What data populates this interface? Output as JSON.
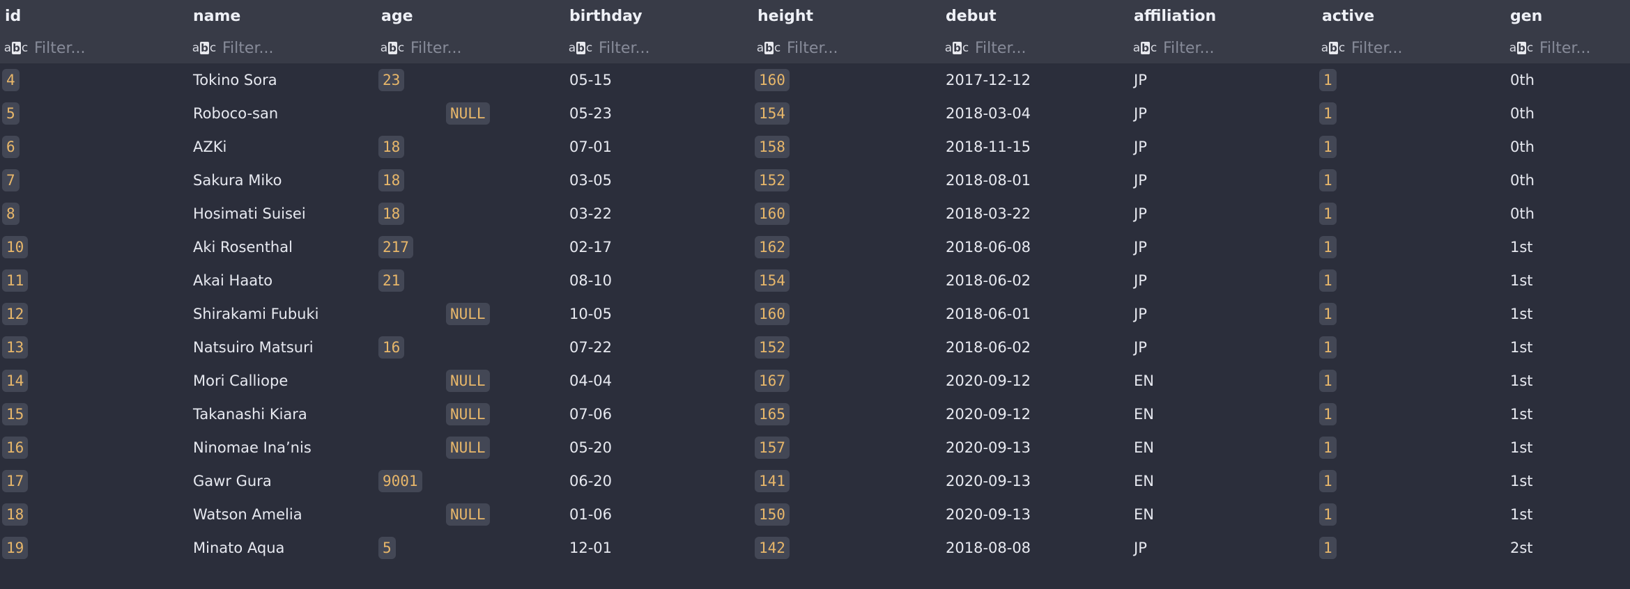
{
  "columns": [
    {
      "key": "id",
      "label": "id"
    },
    {
      "key": "name",
      "label": "name"
    },
    {
      "key": "age",
      "label": "age"
    },
    {
      "key": "birthday",
      "label": "birthday"
    },
    {
      "key": "height",
      "label": "height"
    },
    {
      "key": "debut",
      "label": "debut"
    },
    {
      "key": "affiliation",
      "label": "affiliation"
    },
    {
      "key": "active",
      "label": "active"
    },
    {
      "key": "gen",
      "label": "gen"
    }
  ],
  "filter_placeholder": "Filter...",
  "null_label": "NULL",
  "rows": [
    {
      "id": "4",
      "name": "Tokino Sora",
      "age": "23",
      "birthday": "05-15",
      "height": "160",
      "debut": "2017-12-12",
      "affiliation": "JP",
      "active": "1",
      "gen": "0th"
    },
    {
      "id": "5",
      "name": "Roboco-san",
      "age": null,
      "birthday": "05-23",
      "height": "154",
      "debut": "2018-03-04",
      "affiliation": "JP",
      "active": "1",
      "gen": "0th"
    },
    {
      "id": "6",
      "name": "AZKi",
      "age": "18",
      "birthday": "07-01",
      "height": "158",
      "debut": "2018-11-15",
      "affiliation": "JP",
      "active": "1",
      "gen": "0th"
    },
    {
      "id": "7",
      "name": "Sakura Miko",
      "age": "18",
      "birthday": "03-05",
      "height": "152",
      "debut": "2018-08-01",
      "affiliation": "JP",
      "active": "1",
      "gen": "0th"
    },
    {
      "id": "8",
      "name": "Hosimati Suisei",
      "age": "18",
      "birthday": "03-22",
      "height": "160",
      "debut": "2018-03-22",
      "affiliation": "JP",
      "active": "1",
      "gen": "0th"
    },
    {
      "id": "10",
      "name": "Aki Rosenthal",
      "age": "217",
      "birthday": "02-17",
      "height": "162",
      "debut": "2018-06-08",
      "affiliation": "JP",
      "active": "1",
      "gen": "1st"
    },
    {
      "id": "11",
      "name": "Akai Haato",
      "age": "21",
      "birthday": "08-10",
      "height": "154",
      "debut": "2018-06-02",
      "affiliation": "JP",
      "active": "1",
      "gen": "1st"
    },
    {
      "id": "12",
      "name": "Shirakami Fubuki",
      "age": null,
      "birthday": "10-05",
      "height": "160",
      "debut": "2018-06-01",
      "affiliation": "JP",
      "active": "1",
      "gen": "1st"
    },
    {
      "id": "13",
      "name": "Natsuiro Matsuri",
      "age": "16",
      "birthday": "07-22",
      "height": "152",
      "debut": "2018-06-02",
      "affiliation": "JP",
      "active": "1",
      "gen": "1st"
    },
    {
      "id": "14",
      "name": "Mori Calliope",
      "age": null,
      "birthday": "04-04",
      "height": "167",
      "debut": "2020-09-12",
      "affiliation": "EN",
      "active": "1",
      "gen": "1st"
    },
    {
      "id": "15",
      "name": "Takanashi Kiara",
      "age": null,
      "birthday": "07-06",
      "height": "165",
      "debut": "2020-09-12",
      "affiliation": "EN",
      "active": "1",
      "gen": "1st"
    },
    {
      "id": "16",
      "name": "Ninomae Ina’nis",
      "age": null,
      "birthday": "05-20",
      "height": "157",
      "debut": "2020-09-13",
      "affiliation": "EN",
      "active": "1",
      "gen": "1st"
    },
    {
      "id": "17",
      "name": "Gawr Gura",
      "age": "9001",
      "birthday": "06-20",
      "height": "141",
      "debut": "2020-09-13",
      "affiliation": "EN",
      "active": "1",
      "gen": "1st"
    },
    {
      "id": "18",
      "name": "Watson Amelia",
      "age": null,
      "birthday": "01-06",
      "height": "150",
      "debut": "2020-09-13",
      "affiliation": "EN",
      "active": "1",
      "gen": "1st"
    },
    {
      "id": "19",
      "name": "Minato Aqua",
      "age": "5",
      "birthday": "12-01",
      "height": "142",
      "debut": "2018-08-08",
      "affiliation": "JP",
      "active": "1",
      "gen": "2st"
    }
  ],
  "colors": {
    "background": "#2b2e3b",
    "header": "#383b47",
    "badge_bg": "#434755",
    "number": "#e8b76a",
    "text": "#e7e9f0",
    "placeholder": "#878b99"
  }
}
